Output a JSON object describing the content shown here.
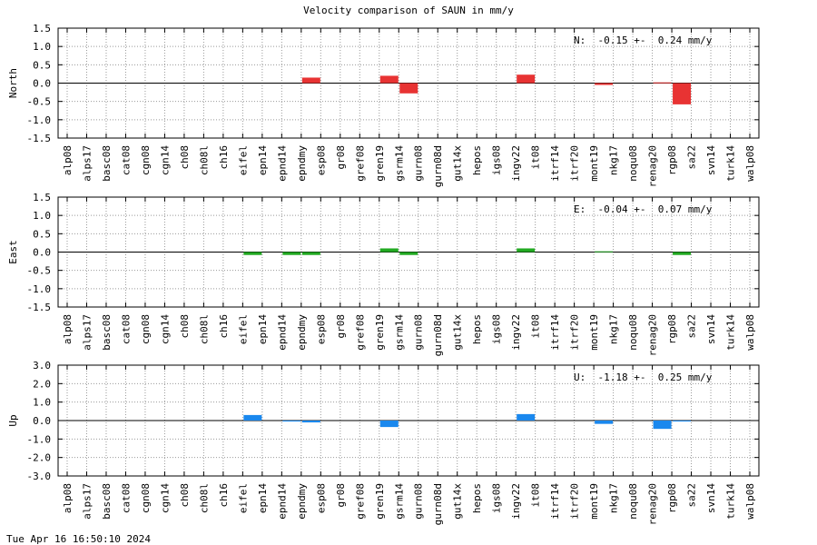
{
  "title": "Velocity comparison of SAUN in mm/y",
  "timestamp": "Tue Apr 16 16:50:10 2024",
  "chart_data": [
    {
      "type": "bar",
      "ylabel": "North",
      "annotation": "N:  -0.15 +-  0.24 mm/y",
      "ylim": [
        -1.5,
        1.5
      ],
      "yticks": [
        "1.5",
        "1.0",
        "0.5",
        "0.0",
        "-0.5",
        "-1.0",
        "-1.5"
      ],
      "color": "#e83333",
      "grid": true,
      "categories": [
        "alp08",
        "alps17",
        "basc08",
        "cat08",
        "cgn08",
        "cgn14",
        "ch08",
        "ch08l",
        "ch16",
        "eifel",
        "epn14",
        "epnd14",
        "epndmy",
        "esp08",
        "gr08",
        "gref08",
        "gren19",
        "gsrm14",
        "gurn08",
        "gurn08d",
        "gut14x",
        "hepos",
        "igs08",
        "ingv22",
        "it08",
        "itrf14",
        "itrf20",
        "mont19",
        "nkg17",
        "noqu08",
        "renag20",
        "rgp08",
        "sa22",
        "svn14",
        "turk14",
        "walp08"
      ],
      "values": [
        0,
        0,
        0,
        0,
        0,
        0,
        0,
        0,
        0,
        0,
        0,
        0,
        0.15,
        0,
        0,
        0,
        0.2,
        -0.28,
        0,
        0,
        0,
        0,
        0,
        0.23,
        0,
        0,
        0,
        -0.05,
        0,
        0,
        0.02,
        -0.58,
        0,
        0,
        0,
        0
      ]
    },
    {
      "type": "bar",
      "ylabel": "East",
      "annotation": "E:  -0.04 +-  0.07 mm/y",
      "ylim": [
        -1.5,
        1.5
      ],
      "yticks": [
        "1.5",
        "1.0",
        "0.5",
        "0.0",
        "-0.5",
        "-1.0",
        "-1.5"
      ],
      "color": "#22aa22",
      "grid": true,
      "categories": [
        "alp08",
        "alps17",
        "basc08",
        "cat08",
        "cgn08",
        "cgn14",
        "ch08",
        "ch08l",
        "ch16",
        "eifel",
        "epn14",
        "epnd14",
        "epndmy",
        "esp08",
        "gr08",
        "gref08",
        "gren19",
        "gsrm14",
        "gurn08",
        "gurn08d",
        "gut14x",
        "hepos",
        "igs08",
        "ingv22",
        "it08",
        "itrf14",
        "itrf20",
        "mont19",
        "nkg17",
        "noqu08",
        "renag20",
        "rgp08",
        "sa22",
        "svn14",
        "turk14",
        "walp08"
      ],
      "values": [
        0,
        0,
        0,
        0,
        0,
        0,
        0,
        0,
        0,
        -0.08,
        0,
        -0.08,
        -0.08,
        0,
        0,
        0,
        0.1,
        -0.08,
        0,
        0,
        0,
        0,
        0,
        0.1,
        0,
        0,
        0,
        0.02,
        0,
        0,
        0,
        -0.08,
        0,
        0,
        0,
        0
      ]
    },
    {
      "type": "bar",
      "ylabel": "Up",
      "annotation": "U:  -1.18 +-  0.25 mm/y",
      "ylim": [
        -3.0,
        3.0
      ],
      "yticks": [
        "3.0",
        "2.0",
        "1.0",
        "0.0",
        "-1.0",
        "-2.0",
        "-3.0"
      ],
      "color": "#1a88ee",
      "grid": true,
      "categories": [
        "alp08",
        "alps17",
        "basc08",
        "cat08",
        "cgn08",
        "cgn14",
        "ch08",
        "ch08l",
        "ch16",
        "eifel",
        "epn14",
        "epnd14",
        "epndmy",
        "esp08",
        "gr08",
        "gref08",
        "gren19",
        "gsrm14",
        "gurn08",
        "gurn08d",
        "gut14x",
        "hepos",
        "igs08",
        "ingv22",
        "it08",
        "itrf14",
        "itrf20",
        "mont19",
        "nkg17",
        "noqu08",
        "renag20",
        "rgp08",
        "sa22",
        "svn14",
        "turk14",
        "walp08"
      ],
      "values": [
        0,
        0,
        0,
        0,
        0,
        0,
        0,
        0,
        0,
        0.3,
        0,
        -0.05,
        -0.1,
        0,
        0,
        0,
        -0.35,
        0,
        0,
        0,
        0,
        0,
        0,
        0.35,
        0,
        0,
        0,
        -0.18,
        0,
        0,
        -0.45,
        -0.05,
        0,
        0,
        0,
        0
      ]
    }
  ]
}
